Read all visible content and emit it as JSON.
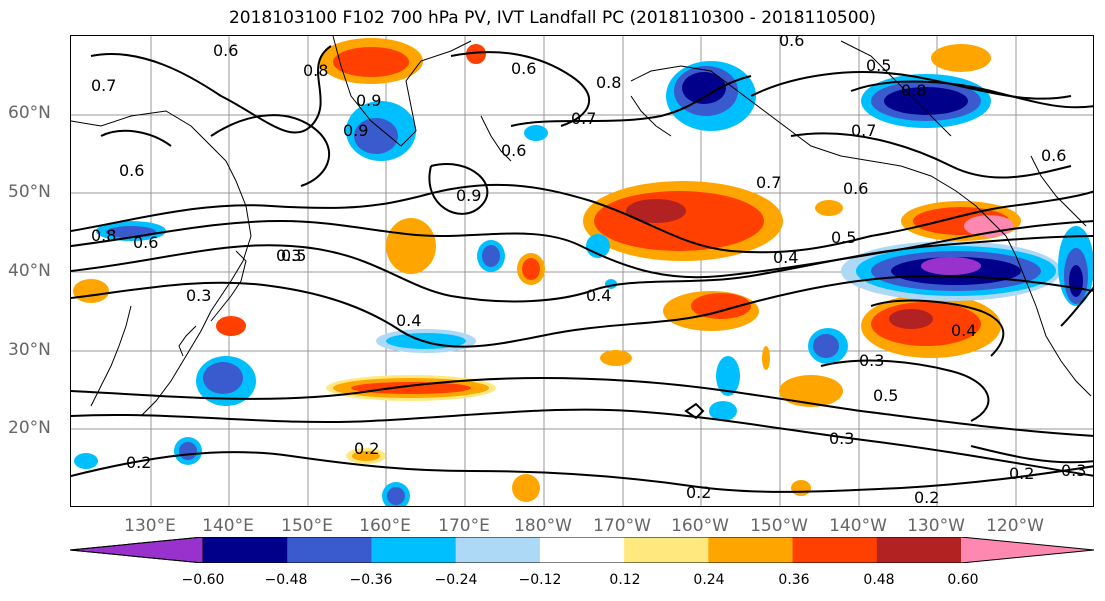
{
  "title": "2018103100 F102 700 hPa PV, IVT Landfall PC (2018110300 - 2018110500)",
  "lat_labels": [
    "60°N",
    "50°N",
    "40°N",
    "30°N",
    "20°N"
  ],
  "lon_labels": [
    "130°E",
    "140°E",
    "150°E",
    "160°E",
    "170°E",
    "180°W",
    "170°W",
    "160°W",
    "150°W",
    "140°W",
    "130°W",
    "120°W"
  ],
  "contour_labels": [
    "0.6",
    "0.7",
    "0.8",
    "0.9",
    "0.6",
    "0.6",
    "0.5",
    "0.8",
    "0.6",
    "0.7",
    "0.8",
    "0.7",
    "0.6",
    "0.6",
    "0.7",
    "0.4",
    "0.5",
    "0.4",
    "0.3",
    "0.3",
    "0.4",
    "0.3",
    "0.5",
    "0.2",
    "0.2",
    "0.3",
    "0.2",
    "0.2",
    "0.3",
    "0.2",
    "0.4",
    "0.9",
    "0.8",
    "0.6",
    "0.5",
    "0.9",
    "0.6"
  ],
  "colorbar": {
    "colors": [
      "#9932cc",
      "#00008b",
      "#3a5bcd",
      "#00bfff",
      "#add8f6",
      "#ffffff",
      "#ffe97f",
      "#ffa500",
      "#ff4000",
      "#b22222",
      "#ff88b0"
    ],
    "tick_labels": [
      "−0.60",
      "−0.48",
      "−0.36",
      "−0.24",
      "−0.12",
      "0.12",
      "0.24",
      "0.36",
      "0.48",
      "0.60"
    ]
  }
}
